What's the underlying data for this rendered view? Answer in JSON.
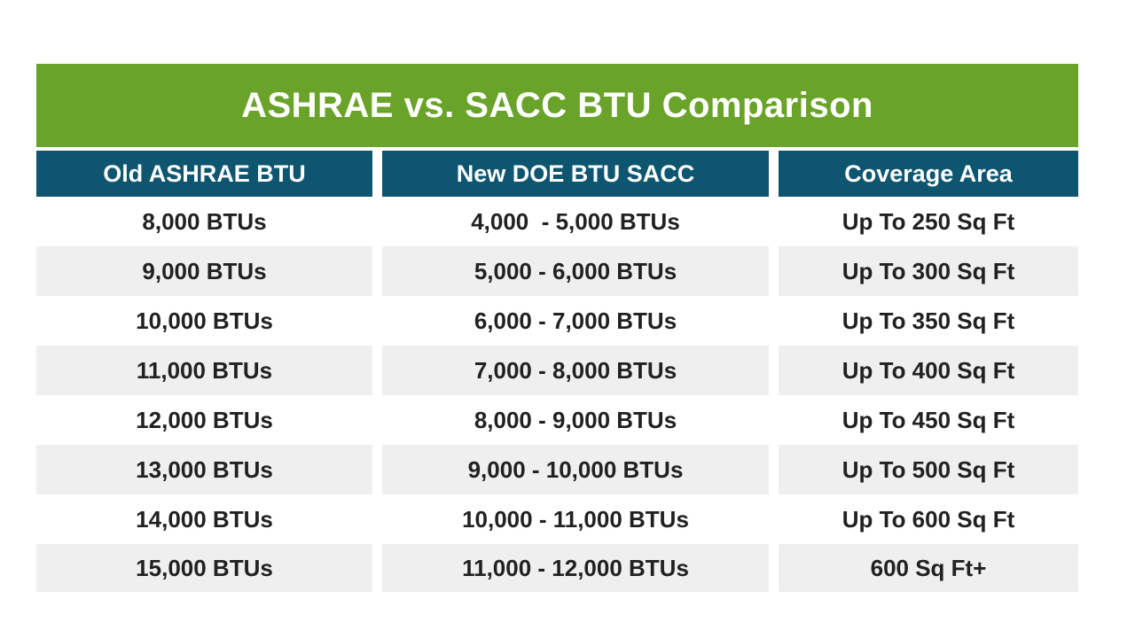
{
  "chart_data": {
    "type": "table",
    "title": "ASHRAE vs. SACC BTU Comparison",
    "columns": [
      "Old ASHRAE BTU",
      "New DOE BTU SACC",
      "Coverage Area"
    ],
    "rows": [
      [
        "8,000 BTUs",
        "4,000  - 5,000 BTUs",
        "Up To 250 Sq Ft"
      ],
      [
        "9,000 BTUs",
        "5,000 - 6,000 BTUs",
        "Up To 300 Sq Ft"
      ],
      [
        "10,000 BTUs",
        "6,000 - 7,000 BTUs",
        "Up To 350 Sq Ft"
      ],
      [
        "11,000 BTUs",
        "7,000 - 8,000 BTUs",
        "Up To 400 Sq Ft"
      ],
      [
        "12,000 BTUs",
        "8,000 - 9,000 BTUs",
        "Up To 450 Sq Ft"
      ],
      [
        "13,000 BTUs",
        "9,000 - 10,000 BTUs",
        "Up To 500 Sq Ft"
      ],
      [
        "14,000 BTUs",
        "10,000 - 11,000 BTUs",
        "Up To 600 Sq Ft"
      ],
      [
        "15,000 BTUs",
        "11,000 - 12,000 BTUs",
        "600 Sq Ft+"
      ]
    ],
    "layout": {
      "striped_rows": "even rows shaded",
      "header_position": "top",
      "grid": "white column gaps, no row lines"
    }
  },
  "colors": {
    "title_bar_green": "#6AA32A",
    "header_teal": "#0E5570",
    "row_stripe_gray": "#EFEFEF",
    "data_text": "#212121",
    "header_text": "#FFFFFF",
    "background": "#FFFFFF"
  }
}
